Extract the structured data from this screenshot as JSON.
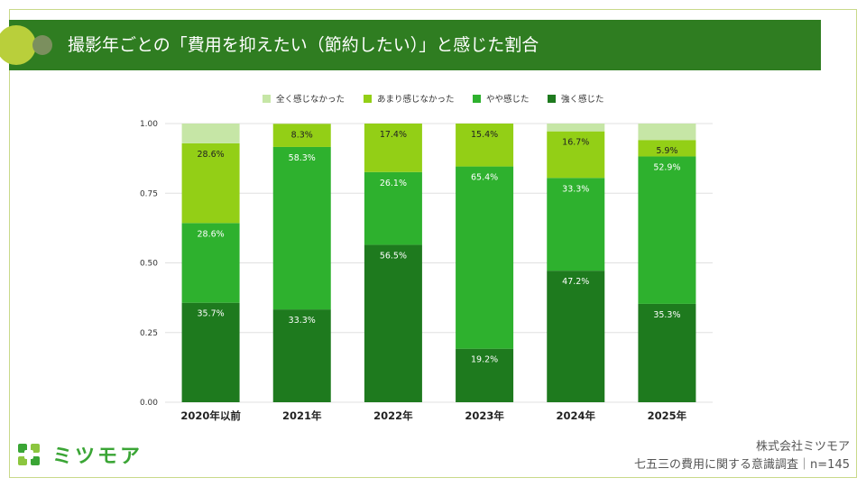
{
  "header": {
    "title": "撮影年ごとの「費用を抑えたい（節約したい）」と感じた割合"
  },
  "brand": {
    "name": "ミツモア",
    "color": "#3aa535"
  },
  "footer": {
    "company": "株式会社ミツモア",
    "survey": "七五三の費用に関する意識調査｜n=145"
  },
  "colors": {
    "header_bg": "#2f7d21",
    "frame": "#c9d98a"
  },
  "chart_data": {
    "type": "bar",
    "stacked": true,
    "categories": [
      "2020年以前",
      "2021年",
      "2022年",
      "2023年",
      "2024年",
      "2025年"
    ],
    "ylim": [
      0,
      1
    ],
    "yticks": [
      "0.00",
      "0.25",
      "0.50",
      "0.75",
      "1.00"
    ],
    "ytick_values": [
      0,
      0.25,
      0.5,
      0.75,
      1
    ],
    "grid": true,
    "legend_position": "top",
    "series": [
      {
        "name": "強く感じた",
        "color": "#1e7a1e",
        "text_color": "#ffffff",
        "values": [
          0.357,
          0.333,
          0.565,
          0.192,
          0.472,
          0.353
        ],
        "labels": [
          "35.7%",
          "33.3%",
          "56.5%",
          "19.2%",
          "47.2%",
          "35.3%"
        ]
      },
      {
        "name": "やや感じた",
        "color": "#2eb12e",
        "text_color": "#ffffff",
        "values": [
          0.286,
          0.583,
          0.261,
          0.654,
          0.333,
          0.529
        ],
        "labels": [
          "28.6%",
          "58.3%",
          "26.1%",
          "65.4%",
          "33.3%",
          "52.9%"
        ]
      },
      {
        "name": "あまり感じなかった",
        "color": "#93cf16",
        "text_color": "#222222",
        "values": [
          0.286,
          0.083,
          0.174,
          0.154,
          0.167,
          0.059
        ],
        "labels": [
          "28.6%",
          "8.3%",
          "17.4%",
          "15.4%",
          "16.7%",
          "5.9%"
        ]
      },
      {
        "name": "全く感じなかった",
        "color": "#c6e6a6",
        "text_color": "#222222",
        "values": [
          0.071,
          0.0,
          0.0,
          0.0,
          0.028,
          0.059
        ],
        "labels": [
          "",
          "",
          "",
          "",
          "",
          ""
        ]
      }
    ],
    "legend_order": [
      "全く感じなかった",
      "あまり感じなかった",
      "やや感じた",
      "強く感じた"
    ]
  }
}
